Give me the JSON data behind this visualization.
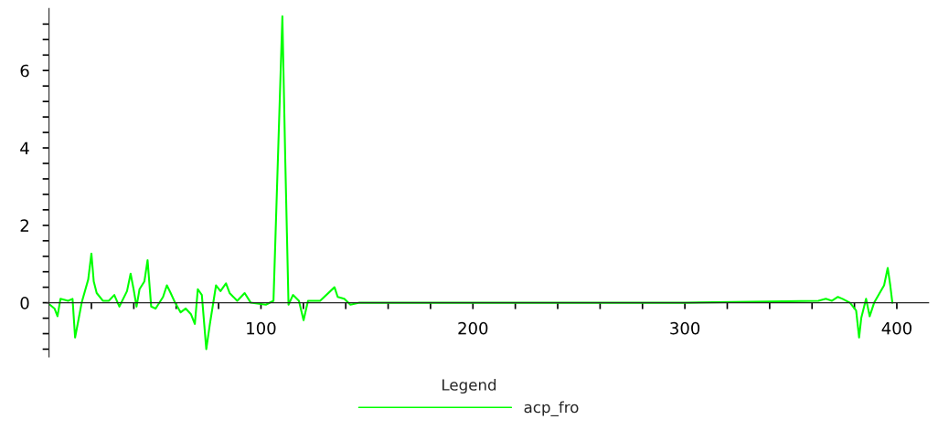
{
  "chart_data": {
    "type": "line",
    "legend_title": "Legend",
    "legend": "bottom",
    "grid": false,
    "xlim": [
      -1,
      415
    ],
    "ylim": [
      -1.4,
      7.6
    ],
    "xticks": [
      {
        "value": 20,
        "label": null
      },
      {
        "value": 40,
        "label": null
      },
      {
        "value": 60,
        "label": null
      },
      {
        "value": 80,
        "label": null
      },
      100,
      {
        "value": 120,
        "label": null
      },
      {
        "value": 140,
        "label": null
      },
      {
        "value": 160,
        "label": null
      },
      {
        "value": 180,
        "label": null
      },
      200,
      {
        "value": 220,
        "label": null
      },
      {
        "value": 240,
        "label": null
      },
      {
        "value": 260,
        "label": null
      },
      {
        "value": 280,
        "label": null
      },
      300,
      {
        "value": 320,
        "label": null
      },
      {
        "value": 340,
        "label": null
      },
      {
        "value": 360,
        "label": null
      },
      {
        "value": 380,
        "label": null
      },
      400
    ],
    "yticks": [
      {
        "value": -1.2,
        "label": null
      },
      {
        "value": -0.8,
        "label": null
      },
      {
        "value": -0.4,
        "label": null
      },
      0,
      {
        "value": 0.4,
        "label": null
      },
      {
        "value": 0.8,
        "label": null
      },
      {
        "value": 1.2,
        "label": null
      },
      {
        "value": 1.6,
        "label": null
      },
      2,
      {
        "value": 2.4,
        "label": null
      },
      {
        "value": 2.8,
        "label": null
      },
      {
        "value": 3.2,
        "label": null
      },
      {
        "value": 3.6,
        "label": null
      },
      4,
      {
        "value": 4.4,
        "label": null
      },
      {
        "value": 4.8,
        "label": null
      },
      {
        "value": 5.2,
        "label": null
      },
      {
        "value": 5.6,
        "label": null
      },
      6,
      {
        "value": 6.4,
        "label": null
      },
      {
        "value": 6.8,
        "label": null
      },
      {
        "value": 7.2,
        "label": null
      }
    ],
    "series": [
      {
        "name": "acp_fro",
        "color": "#00ff00",
        "x": [
          0.4,
          2.6,
          4,
          5.4,
          9,
          11.1,
          12.3,
          13.7,
          15.4,
          18.5,
          20,
          21.1,
          22.5,
          25.4,
          28.2,
          30.8,
          33.2,
          36.8,
          38.5,
          39.9,
          41.3,
          42.7,
          45,
          46.5,
          48.2,
          50.3,
          53.8,
          55.6,
          57.4,
          59.5,
          62.1,
          64.5,
          67,
          68.8,
          70.2,
          72.1,
          74.2,
          75.9,
          78.8,
          80.9,
          83.5,
          85.2,
          88.8,
          92.3,
          95.2,
          102.3,
          105.9,
          110.1,
          111.5,
          113,
          115.1,
          117.9,
          120.1,
          122.2,
          127.9,
          134.7,
          136.2,
          139.3,
          142.2,
          146.5,
          200,
          300,
          363,
          366.5,
          369.4,
          372.2,
          374.4,
          377.9,
          380.8,
          382.2,
          383.2,
          385.5,
          387.2,
          389.3,
          394,
          395.7,
          396.9,
          397.9
        ],
        "values": [
          -0.05,
          -0.15,
          -0.35,
          0.1,
          0.05,
          0.1,
          -0.9,
          -0.5,
          0,
          0.6,
          1.27,
          0.55,
          0.25,
          0.05,
          0.05,
          0.2,
          -0.1,
          0.3,
          0.75,
          0.35,
          -0.1,
          0.35,
          0.55,
          1.1,
          -0.1,
          -0.15,
          0.15,
          0.45,
          0.25,
          0,
          -0.25,
          -0.15,
          -0.3,
          -0.55,
          0.35,
          0.2,
          -1.2,
          -0.55,
          0.45,
          0.3,
          0.5,
          0.25,
          0.05,
          0.25,
          0,
          -0.05,
          0.05,
          7.4,
          3.6,
          -0.05,
          0.2,
          0.05,
          -0.45,
          0.05,
          0.05,
          0.4,
          0.15,
          0.1,
          -0.05,
          0,
          0,
          0,
          0.05,
          0.1,
          0.05,
          0.15,
          0.1,
          0,
          -0.2,
          -0.9,
          -0.4,
          0.1,
          -0.35,
          0,
          0.45,
          0.9,
          0.45,
          0
        ]
      }
    ]
  }
}
